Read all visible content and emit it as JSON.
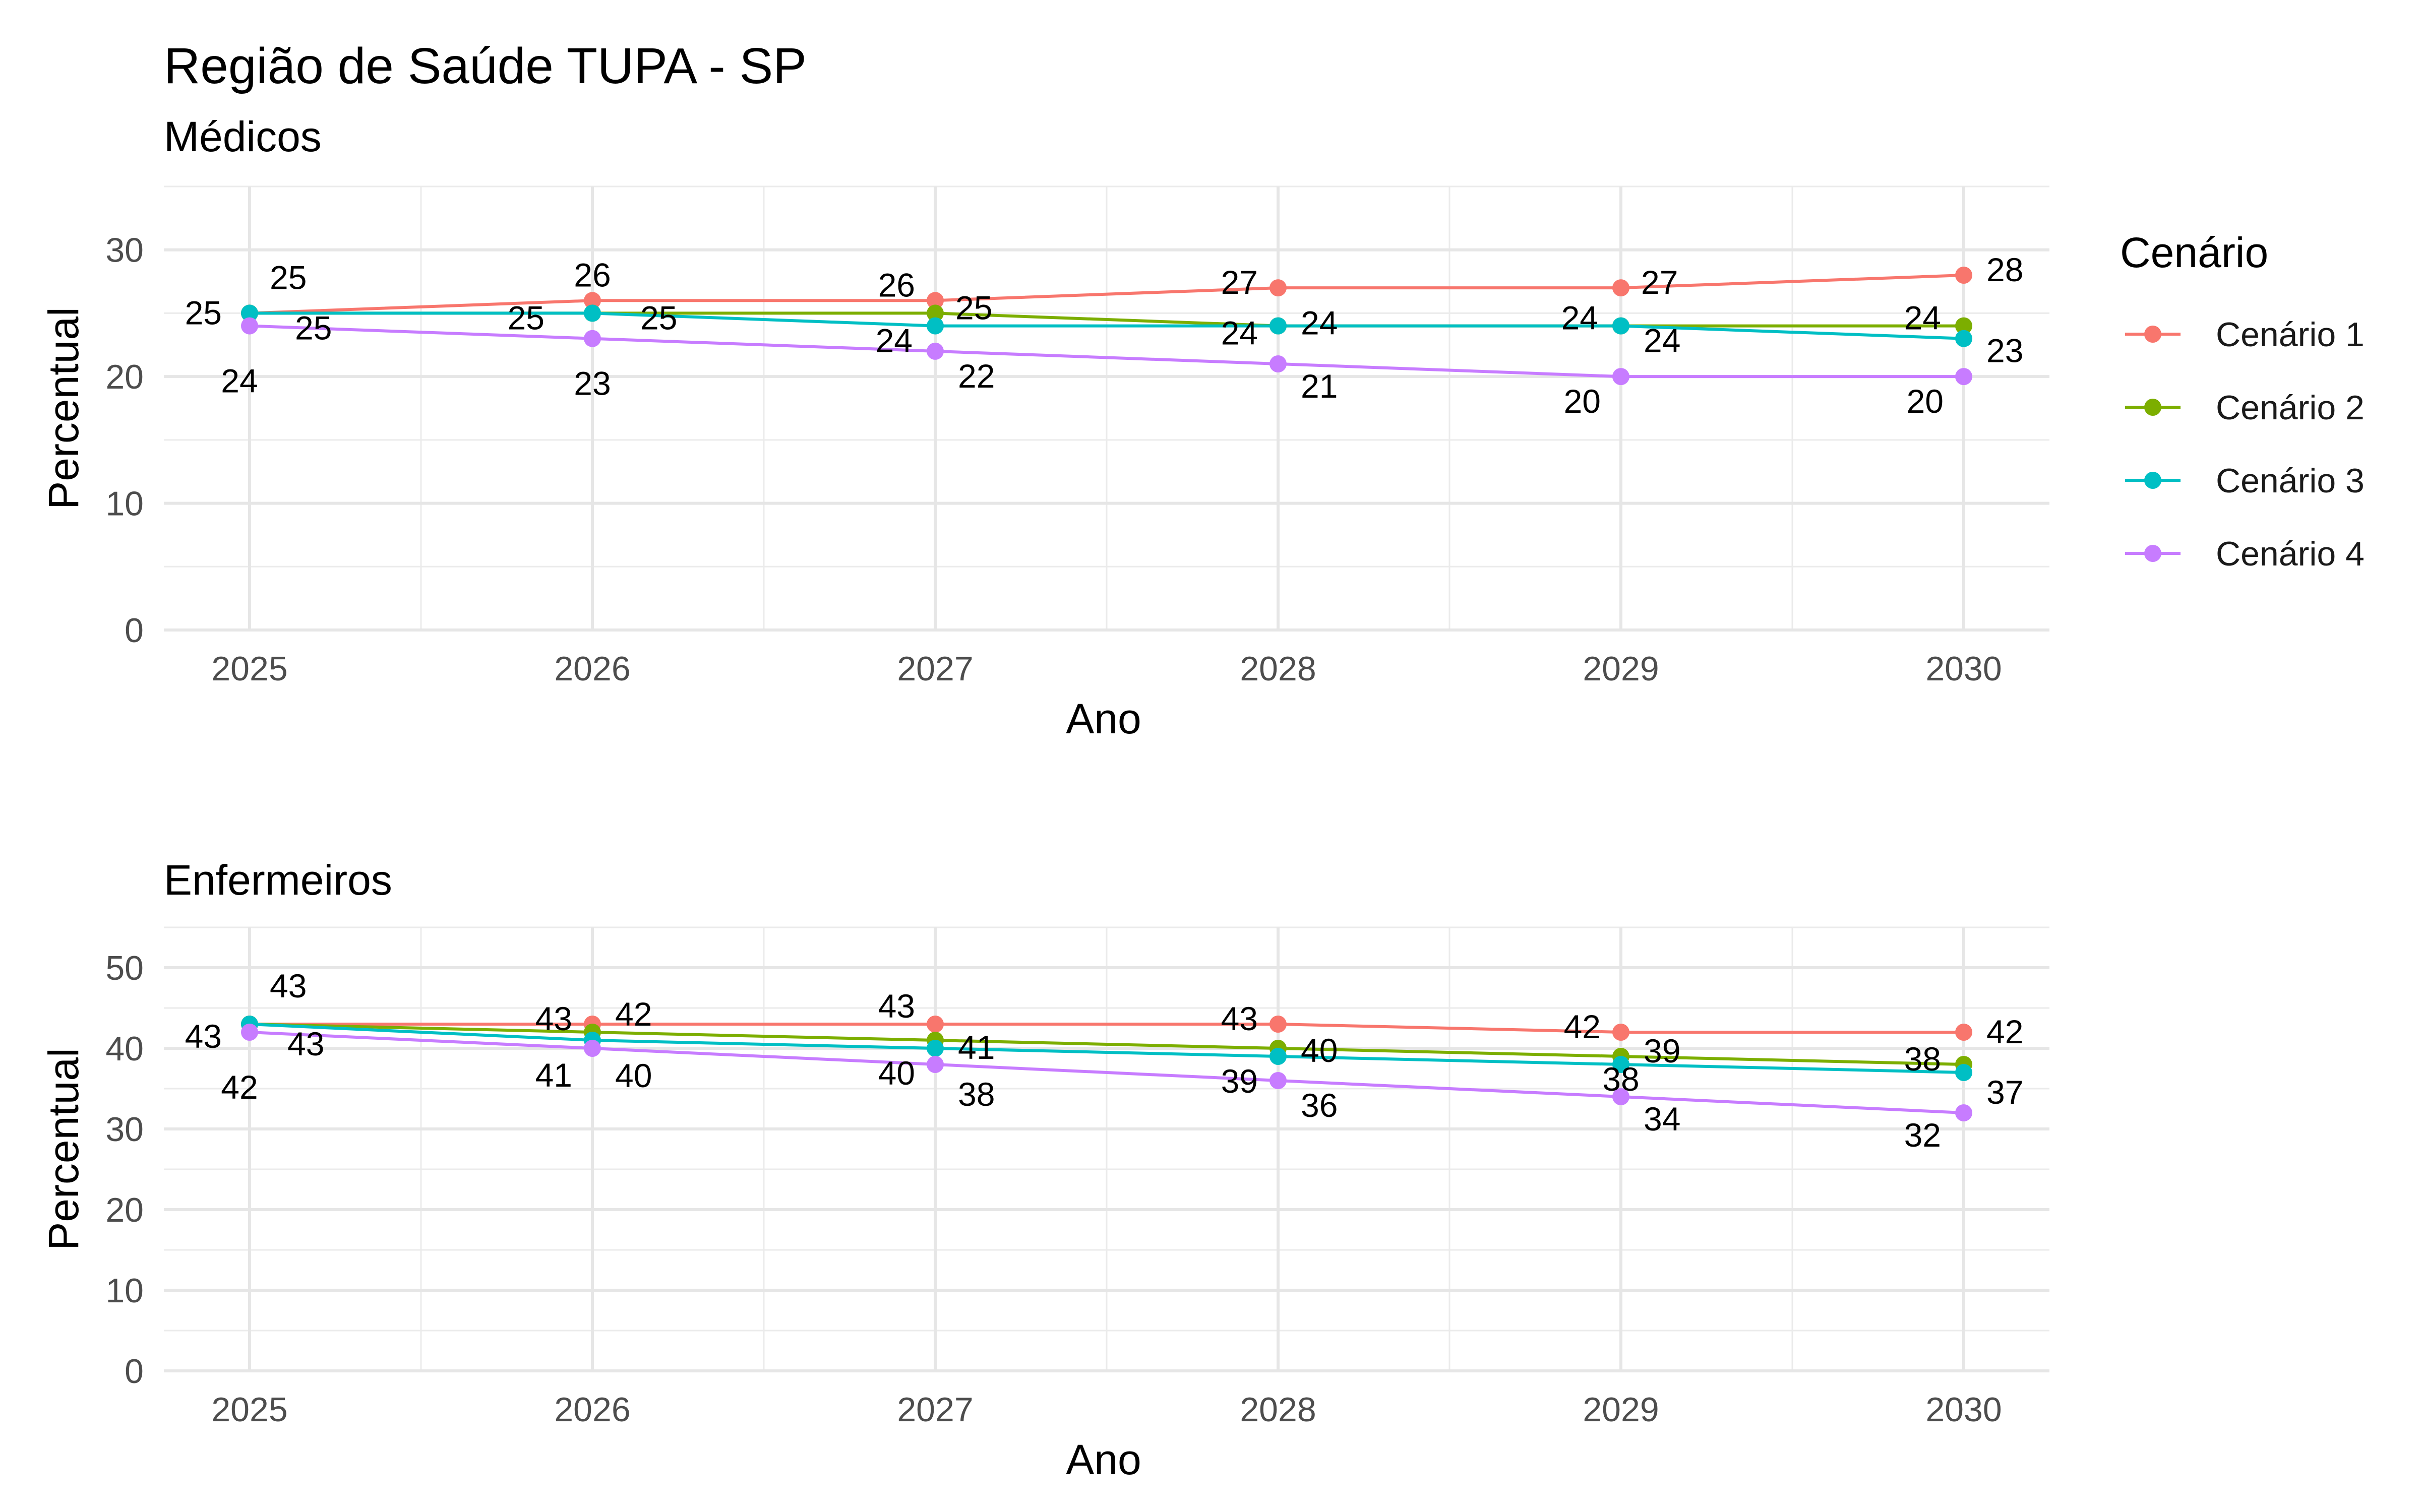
{
  "chart_data": {
    "type": "line",
    "title": "Região de Saúde TUPA - SP",
    "legend": {
      "title": "Cenário",
      "position": "right",
      "entries": [
        {
          "name": "Cenário 1",
          "color": "#F8766D"
        },
        {
          "name": "Cenário 2",
          "color": "#7CAE00"
        },
        {
          "name": "Cenário 3",
          "color": "#00BFC4"
        },
        {
          "name": "Cenário 4",
          "color": "#C77CFF"
        }
      ]
    },
    "grid": true,
    "panels": [
      {
        "subtitle": "Médicos",
        "xlabel": "Ano",
        "ylabel": "Percentual",
        "ylim": [
          0,
          35
        ],
        "yticks": [
          "0",
          "10",
          "20",
          "30"
        ],
        "x": [
          "2025",
          "2026",
          "2027",
          "2028",
          "2029",
          "2030"
        ],
        "series": [
          {
            "name": "Cenário 1",
            "values": [
              25,
              26,
              26,
              27,
              27,
              28
            ]
          },
          {
            "name": "Cenário 2",
            "values": [
              25,
              25,
              25,
              24,
              24,
              24
            ]
          },
          {
            "name": "Cenário 3",
            "values": [
              25,
              25,
              24,
              24,
              24,
              23
            ]
          },
          {
            "name": "Cenário 4",
            "values": [
              24,
              23,
              22,
              21,
              20,
              20
            ]
          }
        ]
      },
      {
        "subtitle": "Enfermeiros",
        "xlabel": "Ano",
        "ylabel": "Percentual",
        "ylim": [
          0,
          55
        ],
        "yticks": [
          "0",
          "10",
          "20",
          "30",
          "40",
          "50"
        ],
        "x": [
          "2025",
          "2026",
          "2027",
          "2028",
          "2029",
          "2030"
        ],
        "series": [
          {
            "name": "Cenário 1",
            "values": [
              43,
              43,
              43,
              43,
              42,
              42
            ]
          },
          {
            "name": "Cenário 2",
            "values": [
              43,
              42,
              41,
              40,
              39,
              38
            ]
          },
          {
            "name": "Cenário 3",
            "values": [
              43,
              41,
              40,
              39,
              38,
              37
            ]
          },
          {
            "name": "Cenário 4",
            "values": [
              42,
              40,
              38,
              36,
              34,
              32
            ]
          }
        ]
      }
    ]
  }
}
